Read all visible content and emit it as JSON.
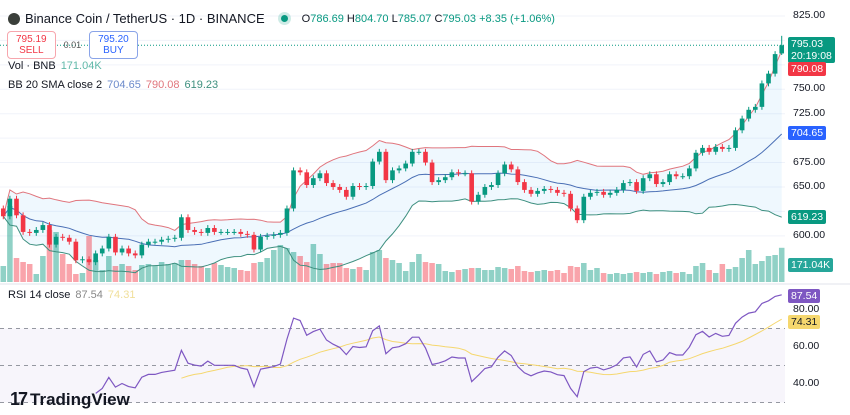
{
  "header": {
    "symbol_title": "Binance Coin / TetherUS · 1D · BINANCE",
    "open_label": "O",
    "open": "786.69",
    "high_label": "H",
    "high": "804.70",
    "low_label": "L",
    "low": "785.07",
    "close_label": "C",
    "close": "795.03",
    "change": "+8.35 (+1.06%)"
  },
  "trade": {
    "sell_price": "795.19",
    "sell_label": "SELL",
    "spread": "0.01",
    "buy_price": "795.20",
    "buy_label": "BUY"
  },
  "legends": {
    "vol_label": "Vol · BNB",
    "vol_value": "171.04K",
    "bb_label": "BB 20 SMA close 2",
    "bb_basis": "704.65",
    "bb_upper": "790.08",
    "bb_lower": "619.23",
    "rsi_label": "RSI 14 close",
    "rsi_value": "87.54",
    "rsi_ma": "74.31"
  },
  "axis_tags": {
    "price": "795.03",
    "countdown": "20:19:08",
    "bb_upper": "790.08",
    "bb_basis": "704.65",
    "bb_lower": "619.23",
    "volume": "171.04K",
    "rsi": "87.54",
    "rsi_ma": "74.31"
  },
  "colors": {
    "up": "#089981",
    "down": "#f23645",
    "bb_basis": "#2962ff",
    "bb_upper": "#e0757d",
    "bb_lower": "#3d8f7f",
    "rsi": "#7e57c2",
    "rsi_ma": "#f5d76e"
  },
  "brand": "TradingView",
  "chart_data": {
    "type": "candlestick",
    "timeframe": "1D",
    "price_axis": {
      "ticks": [
        "825.00",
        "750.00",
        "725.00",
        "675.00",
        "650.00",
        "600.00"
      ],
      "range": [
        565,
        830
      ]
    },
    "rsi_axis": {
      "ticks": [
        "80.00",
        "60.00",
        "40.00"
      ],
      "range": [
        27,
        95
      ],
      "bands": [
        70,
        50,
        30
      ]
    },
    "last_candle": {
      "open": 786.69,
      "high": 804.7,
      "low": 785.07,
      "close": 795.03
    },
    "closes": [
      620,
      638,
      621,
      604,
      603,
      606,
      611,
      591,
      599,
      598,
      594,
      575,
      576,
      573,
      582,
      587,
      599,
      583,
      587,
      582,
      580,
      591,
      594,
      594,
      596,
      597,
      598,
      619,
      606,
      604,
      603,
      608,
      604,
      604,
      604,
      604,
      602,
      601,
      586,
      599,
      600,
      601,
      603,
      628,
      667,
      665,
      652,
      659,
      664,
      654,
      650,
      647,
      640,
      651,
      650,
      651,
      676,
      686,
      657,
      667,
      669,
      674,
      686,
      686,
      675,
      655,
      657,
      660,
      665,
      664,
      664,
      635,
      642,
      650,
      652,
      664,
      673,
      668,
      655,
      647,
      643,
      646,
      648,
      647,
      644,
      643,
      628,
      616,
      640,
      644,
      645,
      642,
      644,
      647,
      654,
      655,
      646,
      659,
      663,
      653,
      655,
      663,
      661,
      661,
      669,
      685,
      690,
      686,
      691,
      689,
      690,
      708,
      720,
      729,
      732,
      756,
      766,
      786,
      795.03
    ],
    "volume_k": [
      80,
      380,
      120,
      100,
      90,
      40,
      130,
      260,
      250,
      140,
      90,
      40,
      45,
      230,
      110,
      60,
      130,
      80,
      90,
      80,
      60,
      85,
      90,
      80,
      100,
      90,
      95,
      110,
      110,
      90,
      80,
      70,
      95,
      85,
      75,
      70,
      60,
      55,
      95,
      100,
      120,
      160,
      185,
      170,
      150,
      130,
      100,
      190,
      140,
      90,
      95,
      95,
      70,
      65,
      75,
      60,
      150,
      160,
      120,
      110,
      95,
      55,
      100,
      140,
      100,
      95,
      90,
      55,
      50,
      60,
      65,
      70,
      70,
      60,
      60,
      75,
      70,
      65,
      80,
      55,
      50,
      55,
      60,
      55,
      60,
      45,
      80,
      75,
      95,
      60,
      70,
      45,
      40,
      45,
      40,
      45,
      50,
      45,
      50,
      40,
      50,
      55,
      45,
      50,
      40,
      80,
      95,
      60,
      45,
      90,
      65,
      75,
      120,
      160,
      90,
      105,
      130,
      135,
      171.04
    ]
  }
}
